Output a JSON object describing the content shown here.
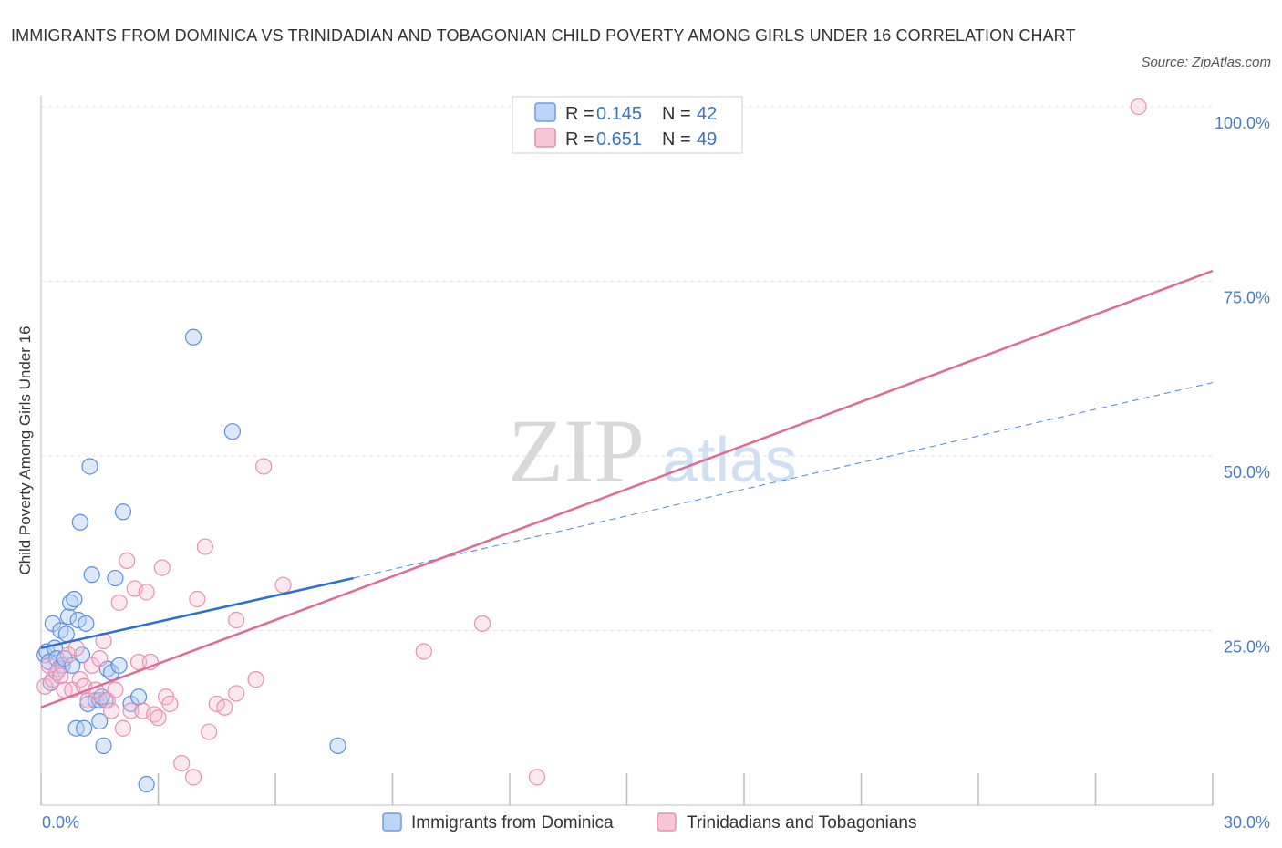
{
  "title": "IMMIGRANTS FROM DOMINICA VS TRINIDADIAN AND TOBAGONIAN CHILD POVERTY AMONG GIRLS UNDER 16 CORRELATION CHART",
  "source": "Source: ZipAtlas.com",
  "watermark": {
    "zip": "ZIP",
    "atlas": "atlas"
  },
  "colors": {
    "blue": "#4a86e0",
    "pink": "#e87aa0",
    "tick": "#4a7cc4"
  },
  "legend": {
    "rows": [
      {
        "r_label": "R = ",
        "r_value": "0.145",
        "n_label": "N = ",
        "n_value": "42"
      },
      {
        "r_label": "R = ",
        "r_value": "0.651",
        "n_label": "N = ",
        "n_value": "49"
      }
    ]
  },
  "chart_data": {
    "type": "scatter",
    "title": "IMMIGRANTS FROM DOMINICA VS TRINIDADIAN AND TOBAGONIAN CHILD POVERTY AMONG GIRLS UNDER 16 CORRELATION CHART",
    "xlabel": "",
    "ylabel": "Child Poverty Among Girls Under 16",
    "xlim": [
      0,
      30
    ],
    "ylim": [
      0,
      100
    ],
    "x_tick_labels": [
      "0.0%",
      "30.0%"
    ],
    "y_ticks": [
      25,
      50,
      75,
      100
    ],
    "y_tick_labels": [
      "25.0%",
      "50.0%",
      "75.0%",
      "100.0%"
    ],
    "grid": true,
    "legend_position": "top-center",
    "series": [
      {
        "name": "Immigrants from Dominica",
        "color": "#4a86e0",
        "R": 0.145,
        "N": 42,
        "trend": {
          "x": [
            0,
            8.0
          ],
          "y": [
            22.5,
            32.5
          ],
          "dashed_to": [
            30,
            60.5
          ]
        },
        "points": [
          [
            0.1,
            21.5
          ],
          [
            0.15,
            22.0
          ],
          [
            0.2,
            20.5
          ],
          [
            0.25,
            17.5
          ],
          [
            0.3,
            26.0
          ],
          [
            0.35,
            22.5
          ],
          [
            0.4,
            21.0
          ],
          [
            0.45,
            19.5
          ],
          [
            0.5,
            25.0
          ],
          [
            0.55,
            20.0
          ],
          [
            0.6,
            21.0
          ],
          [
            0.65,
            24.5
          ],
          [
            0.7,
            27.0
          ],
          [
            0.75,
            29.0
          ],
          [
            0.8,
            20.0
          ],
          [
            0.85,
            29.5
          ],
          [
            0.9,
            11.0
          ],
          [
            0.95,
            26.5
          ],
          [
            1.0,
            40.5
          ],
          [
            1.05,
            21.5
          ],
          [
            1.1,
            11.0
          ],
          [
            1.15,
            26.0
          ],
          [
            1.2,
            14.5
          ],
          [
            1.25,
            48.5
          ],
          [
            1.3,
            33.0
          ],
          [
            1.4,
            15.0
          ],
          [
            1.5,
            12.0
          ],
          [
            1.6,
            8.5
          ],
          [
            1.65,
            15.0
          ],
          [
            1.5,
            15.0
          ],
          [
            1.55,
            15.5
          ],
          [
            1.7,
            19.5
          ],
          [
            1.8,
            19.0
          ],
          [
            1.9,
            32.5
          ],
          [
            2.0,
            20.0
          ],
          [
            2.1,
            42.0
          ],
          [
            2.3,
            14.5
          ],
          [
            2.5,
            15.5
          ],
          [
            2.7,
            3.0
          ],
          [
            3.9,
            67.0
          ],
          [
            4.9,
            53.5
          ],
          [
            7.6,
            8.5
          ]
        ]
      },
      {
        "name": "Trinidadians and Tobagonians",
        "color": "#e87aa0",
        "R": 0.651,
        "N": 49,
        "trend": {
          "x": [
            0,
            30
          ],
          "y": [
            14.0,
            76.5
          ]
        },
        "points": [
          [
            0.1,
            17.0
          ],
          [
            0.2,
            20.0
          ],
          [
            0.3,
            18.0
          ],
          [
            0.4,
            19.0
          ],
          [
            0.5,
            18.5
          ],
          [
            0.6,
            16.5
          ],
          [
            0.7,
            21.5
          ],
          [
            0.8,
            16.5
          ],
          [
            0.9,
            22.5
          ],
          [
            1.0,
            18.0
          ],
          [
            1.1,
            17.0
          ],
          [
            1.2,
            15.0
          ],
          [
            1.3,
            20.0
          ],
          [
            1.4,
            16.5
          ],
          [
            1.5,
            21.0
          ],
          [
            1.6,
            23.5
          ],
          [
            1.7,
            15.0
          ],
          [
            1.8,
            13.5
          ],
          [
            1.9,
            16.5
          ],
          [
            2.0,
            29.0
          ],
          [
            2.1,
            11.0
          ],
          [
            2.2,
            35.0
          ],
          [
            2.3,
            13.5
          ],
          [
            2.4,
            31.0
          ],
          [
            2.5,
            20.5
          ],
          [
            2.6,
            13.5
          ],
          [
            2.7,
            30.5
          ],
          [
            2.8,
            20.5
          ],
          [
            2.9,
            13.0
          ],
          [
            3.0,
            12.5
          ],
          [
            3.1,
            34.0
          ],
          [
            3.2,
            15.5
          ],
          [
            3.3,
            14.5
          ],
          [
            3.6,
            6.0
          ],
          [
            3.9,
            4.0
          ],
          [
            4.0,
            29.5
          ],
          [
            4.2,
            37.0
          ],
          [
            4.3,
            10.5
          ],
          [
            4.5,
            14.5
          ],
          [
            4.7,
            14.0
          ],
          [
            5.0,
            16.0
          ],
          [
            5.0,
            26.5
          ],
          [
            5.5,
            18.0
          ],
          [
            5.7,
            48.5
          ],
          [
            6.2,
            31.5
          ],
          [
            9.8,
            22.0
          ],
          [
            11.3,
            26.0
          ],
          [
            12.7,
            4.0
          ],
          [
            28.1,
            100.0
          ]
        ]
      }
    ]
  }
}
